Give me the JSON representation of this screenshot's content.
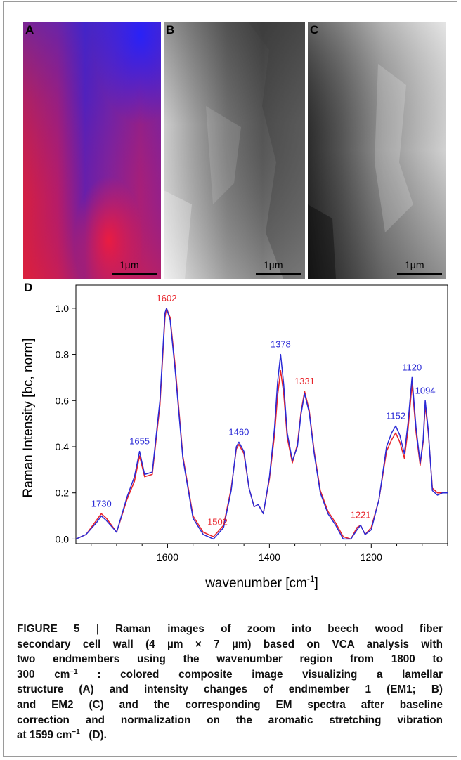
{
  "panels": [
    {
      "letter": "A",
      "scale_label": "1µm"
    },
    {
      "letter": "B",
      "scale_label": "1µm"
    },
    {
      "letter": "C",
      "scale_label": "1µm"
    }
  ],
  "chart_data": {
    "panel_letter": "D",
    "type": "line",
    "title": "",
    "xlabel": "wavenumber [cm",
    "xlabel_superscript": "-1",
    "xlabel_suffix": "]",
    "ylabel": "Raman Intensity [bc, norm]",
    "x_reversed": true,
    "xlim": [
      1780,
      1050
    ],
    "ylim": [
      -0.02,
      1.1
    ],
    "x_ticks": [
      1600,
      1400,
      1200
    ],
    "y_ticks": [
      "0.0",
      "0.2",
      "0.4",
      "0.6",
      "0.8",
      "1.0"
    ],
    "series_colors": [
      "#e8232a",
      "#2a2ad6"
    ],
    "x": [
      1780,
      1760,
      1740,
      1730,
      1720,
      1700,
      1680,
      1665,
      1655,
      1645,
      1630,
      1615,
      1605,
      1602,
      1595,
      1585,
      1570,
      1550,
      1530,
      1510,
      1502,
      1490,
      1475,
      1465,
      1460,
      1450,
      1440,
      1430,
      1422,
      1412,
      1400,
      1390,
      1384,
      1378,
      1372,
      1365,
      1355,
      1345,
      1338,
      1331,
      1322,
      1312,
      1300,
      1285,
      1270,
      1255,
      1240,
      1228,
      1221,
      1212,
      1200,
      1185,
      1170,
      1160,
      1152,
      1144,
      1135,
      1128,
      1120,
      1112,
      1104,
      1098,
      1094,
      1088,
      1080,
      1070,
      1060,
      1050
    ],
    "series": [
      {
        "values": [
          0.0,
          0.02,
          0.08,
          0.11,
          0.09,
          0.03,
          0.17,
          0.25,
          0.36,
          0.27,
          0.28,
          0.58,
          0.96,
          1.0,
          0.96,
          0.75,
          0.36,
          0.1,
          0.03,
          0.01,
          0.03,
          0.06,
          0.22,
          0.39,
          0.41,
          0.37,
          0.22,
          0.14,
          0.15,
          0.11,
          0.26,
          0.45,
          0.62,
          0.73,
          0.63,
          0.44,
          0.33,
          0.41,
          0.55,
          0.64,
          0.56,
          0.38,
          0.21,
          0.12,
          0.07,
          0.01,
          0.0,
          0.05,
          0.06,
          0.02,
          0.05,
          0.17,
          0.38,
          0.43,
          0.46,
          0.42,
          0.35,
          0.47,
          0.67,
          0.46,
          0.32,
          0.42,
          0.58,
          0.46,
          0.22,
          0.2,
          0.2,
          0.2
        ]
      },
      {
        "values": [
          0.0,
          0.02,
          0.07,
          0.1,
          0.08,
          0.03,
          0.18,
          0.27,
          0.38,
          0.28,
          0.29,
          0.6,
          0.98,
          1.0,
          0.95,
          0.73,
          0.35,
          0.09,
          0.02,
          0.0,
          0.02,
          0.05,
          0.21,
          0.4,
          0.42,
          0.38,
          0.22,
          0.14,
          0.15,
          0.11,
          0.27,
          0.48,
          0.68,
          0.8,
          0.67,
          0.46,
          0.34,
          0.4,
          0.54,
          0.63,
          0.55,
          0.37,
          0.2,
          0.11,
          0.06,
          0.0,
          0.0,
          0.04,
          0.06,
          0.02,
          0.04,
          0.17,
          0.4,
          0.46,
          0.49,
          0.45,
          0.37,
          0.5,
          0.7,
          0.48,
          0.33,
          0.43,
          0.6,
          0.47,
          0.21,
          0.19,
          0.2,
          0.2
        ]
      }
    ],
    "peak_labels": [
      {
        "x": 1730,
        "y": 0.11,
        "text": "1730",
        "color": "#2a2ad6"
      },
      {
        "x": 1655,
        "y": 0.38,
        "text": "1655",
        "color": "#2a2ad6"
      },
      {
        "x": 1602,
        "y": 1.0,
        "text": "1602",
        "color": "#e8232a"
      },
      {
        "x": 1502,
        "y": 0.03,
        "text": "1502",
        "color": "#e8232a"
      },
      {
        "x": 1460,
        "y": 0.42,
        "text": "1460",
        "color": "#2a2ad6"
      },
      {
        "x": 1378,
        "y": 0.8,
        "text": "1378",
        "color": "#2a2ad6"
      },
      {
        "x": 1331,
        "y": 0.64,
        "text": "1331",
        "color": "#e8232a"
      },
      {
        "x": 1221,
        "y": 0.06,
        "text": "1221",
        "color": "#e8232a"
      },
      {
        "x": 1152,
        "y": 0.49,
        "text": "1152",
        "color": "#2a2ad6"
      },
      {
        "x": 1120,
        "y": 0.7,
        "text": "1120",
        "color": "#2a2ad6"
      },
      {
        "x": 1094,
        "y": 0.6,
        "text": "1094",
        "color": "#2a2ad6"
      }
    ]
  },
  "caption": {
    "label": "FIGURE 5",
    "sep": "|",
    "line1": "Raman images of zoom into beech wood fiber",
    "line2": "secondary cell wall (4 µm × 7 µm) based on VCA analysis with",
    "line3": "two endmembers using the wavenumber region from 1800 to",
    "line4a": "300 cm",
    "line4sup": "−1",
    "line4b": " : colored composite image visualizing a lamellar",
    "line5": "structure (A) and intensity changes of endmember 1 (EM1; B)",
    "line6": "and EM2 (C) and the corresponding EM spectra after baseline",
    "line7": "correction and normalization on the aromatic stretching vibration",
    "line8a": "at 1599 cm",
    "line8sup": "−1",
    "line8b": "   (D)."
  }
}
